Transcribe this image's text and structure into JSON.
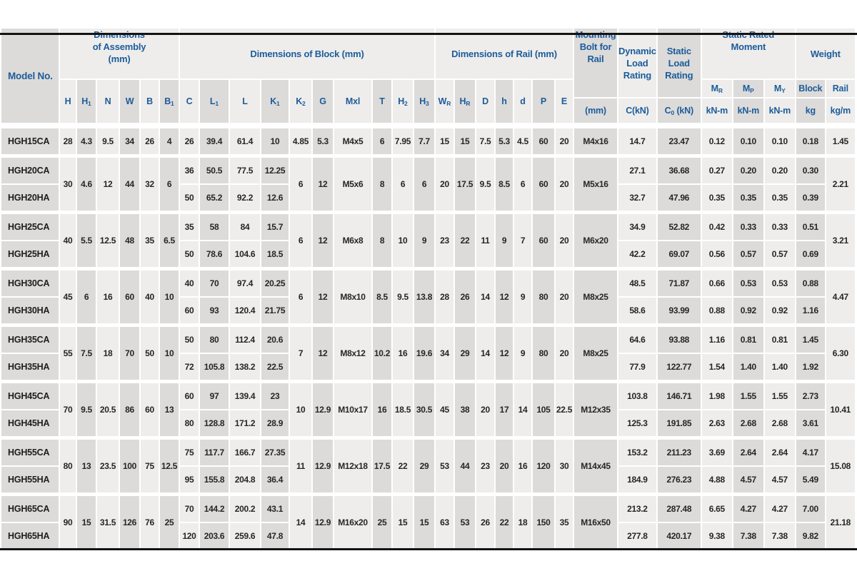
{
  "colors": {
    "header_text": "#1c5c9b",
    "body_text": "#262626",
    "band_light": "#eeedeb",
    "band_dark": "#dcdbd9",
    "rule": "#141414"
  },
  "header": {
    "model_no": "Model No.",
    "assembly_title": "Dimensions of Assembly (mm)",
    "block_title": "Dimensions of Block (mm)",
    "rail_title": "Dimensions of Rail (mm)",
    "bolt_title": "Mounting Bolt for Rail",
    "dynamic_title": "Dynamic Load Rating",
    "static_title": "Static Load Rating",
    "moment_title": "Static Rated Moment",
    "weight_title": "Weight",
    "symbols": [
      "H",
      "H_{1}",
      "N",
      "W",
      "B",
      "B_{1}",
      "C",
      "L_{1}",
      "L",
      "K_{1}",
      "K_{2}",
      "G",
      "Mxl",
      "T",
      "H_{2}",
      "H_{3}",
      "W_{R}",
      "H_{R}",
      "D",
      "h",
      "d",
      "P",
      "E"
    ],
    "moment_cols": [
      "M_{R}",
      "M_{P}",
      "M_{Y}"
    ],
    "weight_cols": [
      "Block",
      "Rail"
    ],
    "bolt_unit": "(mm)",
    "dynamic_unit": "C(kN)",
    "static_unit": "C_{0} (kN)",
    "moment_unit": "kN-m",
    "weight_units": [
      "kg",
      "kg/m"
    ]
  },
  "table": {
    "groups": [
      {
        "models": [
          "HGH15CA"
        ],
        "assembly": [
          "28",
          "4.3",
          "9.5",
          "34",
          "26",
          "4"
        ],
        "block_rows": [
          [
            "26",
            "39.4",
            "61.4",
            "10"
          ]
        ],
        "block_shared": [
          "4.85",
          "5.3",
          "M4x5",
          "6",
          "7.95",
          "7.7"
        ],
        "rail": [
          "15",
          "15",
          "7.5",
          "5.3",
          "4.5",
          "60",
          "20"
        ],
        "bolt": "M4x16",
        "ratings_rows": [
          [
            "14.7",
            "23.47",
            "0.12",
            "0.10",
            "0.10",
            "0.18"
          ]
        ],
        "rail_weight": "1.45"
      },
      {
        "models": [
          "HGH20CA",
          "HGH20HA"
        ],
        "assembly": [
          "30",
          "4.6",
          "12",
          "44",
          "32",
          "6"
        ],
        "block_rows": [
          [
            "36",
            "50.5",
            "77.5",
            "12.25"
          ],
          [
            "50",
            "65.2",
            "92.2",
            "12.6"
          ]
        ],
        "block_shared": [
          "6",
          "12",
          "M5x6",
          "8",
          "6",
          "6"
        ],
        "rail": [
          "20",
          "17.5",
          "9.5",
          "8.5",
          "6",
          "60",
          "20"
        ],
        "bolt": "M5x16",
        "ratings_rows": [
          [
            "27.1",
            "36.68",
            "0.27",
            "0.20",
            "0.20",
            "0.30"
          ],
          [
            "32.7",
            "47.96",
            "0.35",
            "0.35",
            "0.35",
            "0.39"
          ]
        ],
        "rail_weight": "2.21"
      },
      {
        "models": [
          "HGH25CA",
          "HGH25HA"
        ],
        "assembly": [
          "40",
          "5.5",
          "12.5",
          "48",
          "35",
          "6.5"
        ],
        "block_rows": [
          [
            "35",
            "58",
            "84",
            "15.7"
          ],
          [
            "50",
            "78.6",
            "104.6",
            "18.5"
          ]
        ],
        "block_shared": [
          "6",
          "12",
          "M6x8",
          "8",
          "10",
          "9"
        ],
        "rail": [
          "23",
          "22",
          "11",
          "9",
          "7",
          "60",
          "20"
        ],
        "bolt": "M6x20",
        "ratings_rows": [
          [
            "34.9",
            "52.82",
            "0.42",
            "0.33",
            "0.33",
            "0.51"
          ],
          [
            "42.2",
            "69.07",
            "0.56",
            "0.57",
            "0.57",
            "0.69"
          ]
        ],
        "rail_weight": "3.21"
      },
      {
        "models": [
          "HGH30CA",
          "HGH30HA"
        ],
        "assembly": [
          "45",
          "6",
          "16",
          "60",
          "40",
          "10"
        ],
        "block_rows": [
          [
            "40",
            "70",
            "97.4",
            "20.25"
          ],
          [
            "60",
            "93",
            "120.4",
            "21.75"
          ]
        ],
        "block_shared": [
          "6",
          "12",
          "M8x10",
          "8.5",
          "9.5",
          "13.8"
        ],
        "rail": [
          "28",
          "26",
          "14",
          "12",
          "9",
          "80",
          "20"
        ],
        "bolt": "M8x25",
        "ratings_rows": [
          [
            "48.5",
            "71.87",
            "0.66",
            "0.53",
            "0.53",
            "0.88"
          ],
          [
            "58.6",
            "93.99",
            "0.88",
            "0.92",
            "0.92",
            "1.16"
          ]
        ],
        "rail_weight": "4.47"
      },
      {
        "models": [
          "HGH35CA",
          "HGH35HA"
        ],
        "assembly": [
          "55",
          "7.5",
          "18",
          "70",
          "50",
          "10"
        ],
        "block_rows": [
          [
            "50",
            "80",
            "112.4",
            "20.6"
          ],
          [
            "72",
            "105.8",
            "138.2",
            "22.5"
          ]
        ],
        "block_shared": [
          "7",
          "12",
          "M8x12",
          "10.2",
          "16",
          "19.6"
        ],
        "rail": [
          "34",
          "29",
          "14",
          "12",
          "9",
          "80",
          "20"
        ],
        "bolt": "M8x25",
        "ratings_rows": [
          [
            "64.6",
            "93.88",
            "1.16",
            "0.81",
            "0.81",
            "1.45"
          ],
          [
            "77.9",
            "122.77",
            "1.54",
            "1.40",
            "1.40",
            "1.92"
          ]
        ],
        "rail_weight": "6.30"
      },
      {
        "models": [
          "HGH45CA",
          "HGH45HA"
        ],
        "assembly": [
          "70",
          "9.5",
          "20.5",
          "86",
          "60",
          "13"
        ],
        "block_rows": [
          [
            "60",
            "97",
            "139.4",
            "23"
          ],
          [
            "80",
            "128.8",
            "171.2",
            "28.9"
          ]
        ],
        "block_shared": [
          "10",
          "12.9",
          "M10x17",
          "16",
          "18.5",
          "30.5"
        ],
        "rail": [
          "45",
          "38",
          "20",
          "17",
          "14",
          "105",
          "22.5"
        ],
        "bolt": "M12x35",
        "ratings_rows": [
          [
            "103.8",
            "146.71",
            "1.98",
            "1.55",
            "1.55",
            "2.73"
          ],
          [
            "125.3",
            "191.85",
            "2.63",
            "2.68",
            "2.68",
            "3.61"
          ]
        ],
        "rail_weight": "10.41"
      },
      {
        "models": [
          "HGH55CA",
          "HGH55HA"
        ],
        "assembly": [
          "80",
          "13",
          "23.5",
          "100",
          "75",
          "12.5"
        ],
        "block_rows": [
          [
            "75",
            "117.7",
            "166.7",
            "27.35"
          ],
          [
            "95",
            "155.8",
            "204.8",
            "36.4"
          ]
        ],
        "block_shared": [
          "11",
          "12.9",
          "M12x18",
          "17.5",
          "22",
          "29"
        ],
        "rail": [
          "53",
          "44",
          "23",
          "20",
          "16",
          "120",
          "30"
        ],
        "bolt": "M14x45",
        "ratings_rows": [
          [
            "153.2",
            "211.23",
            "3.69",
            "2.64",
            "2.64",
            "4.17"
          ],
          [
            "184.9",
            "276.23",
            "4.88",
            "4.57",
            "4.57",
            "5.49"
          ]
        ],
        "rail_weight": "15.08"
      },
      {
        "models": [
          "HGH65CA",
          "HGH65HA"
        ],
        "assembly": [
          "90",
          "15",
          "31.5",
          "126",
          "76",
          "25"
        ],
        "block_rows": [
          [
            "70",
            "144.2",
            "200.2",
            "43.1"
          ],
          [
            "120",
            "203.6",
            "259.6",
            "47.8"
          ]
        ],
        "block_shared": [
          "14",
          "12.9",
          "M16x20",
          "25",
          "15",
          "15"
        ],
        "rail": [
          "63",
          "53",
          "26",
          "22",
          "18",
          "150",
          "35"
        ],
        "bolt": "M16x50",
        "ratings_rows": [
          [
            "213.2",
            "287.48",
            "6.65",
            "4.27",
            "4.27",
            "7.00"
          ],
          [
            "277.8",
            "420.17",
            "9.38",
            "7.38",
            "7.38",
            "9.82"
          ]
        ],
        "rail_weight": "21.18"
      }
    ]
  }
}
